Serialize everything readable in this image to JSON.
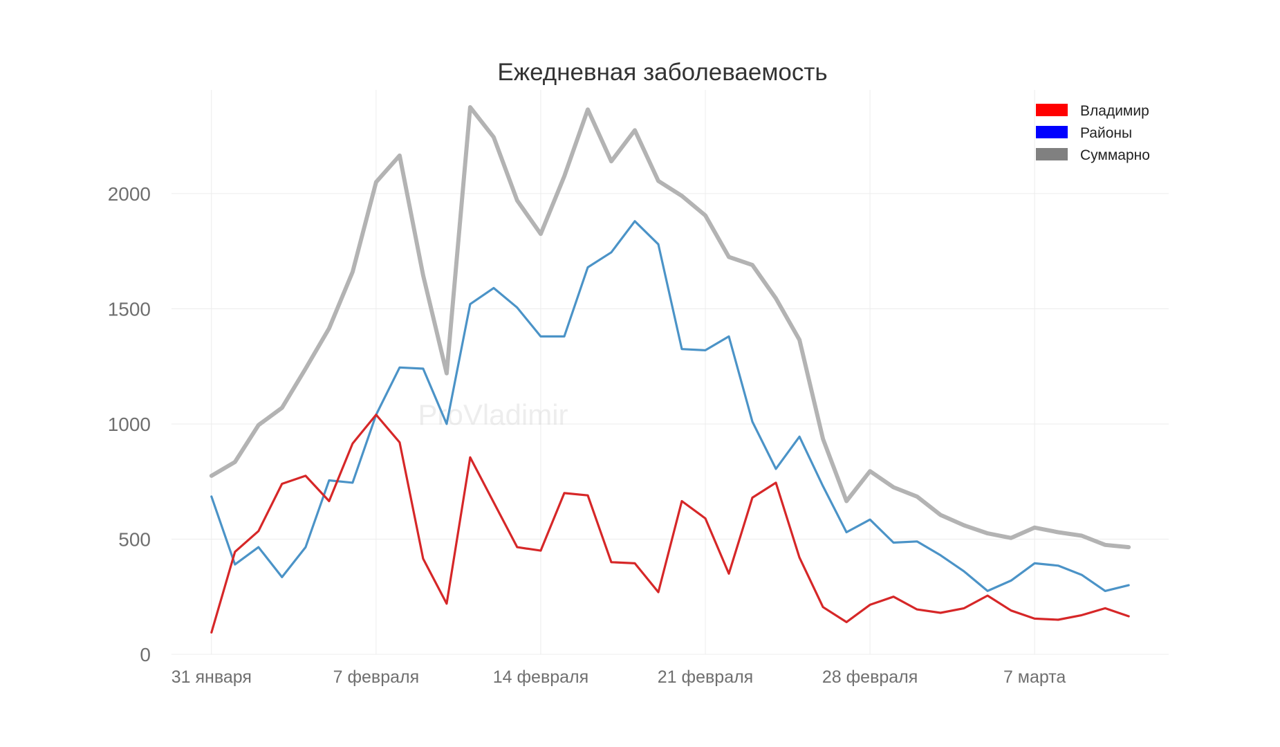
{
  "chart_data": {
    "type": "line",
    "title": "Ежедневная заболеваемость",
    "watermark": "ProVladimir",
    "xlabel": "",
    "ylabel": "",
    "x_start_day": 0,
    "x_count": 40,
    "x_range": [
      -1.7,
      40.7
    ],
    "ylim": [
      0,
      2450
    ],
    "y_ticks": [
      0,
      500,
      1000,
      1500,
      2000
    ],
    "x_ticks": [
      {
        "day": 0,
        "label": "31 января"
      },
      {
        "day": 7,
        "label": "7 февраля"
      },
      {
        "day": 14,
        "label": "14 февраля"
      },
      {
        "day": 21,
        "label": "21 февраля"
      },
      {
        "day": 28,
        "label": "28 февраля"
      },
      {
        "day": 35,
        "label": "7 марта"
      }
    ],
    "legend_position": "top-right",
    "series": [
      {
        "name": "Суммарно",
        "color": "#b3b3b3",
        "legend_color": "#808080",
        "values": [
          775,
          835,
          995,
          1070,
          1240,
          1415,
          1660,
          2050,
          2165,
          1645,
          1220,
          2375,
          2245,
          1970,
          1825,
          2075,
          2365,
          2140,
          2275,
          2055,
          1990,
          1905,
          1725,
          1690,
          1545,
          1365,
          935,
          665,
          795,
          725,
          685,
          605,
          560,
          525,
          505,
          550,
          530,
          515,
          475,
          465
        ]
      },
      {
        "name": "Районы",
        "color": "#4b93c7",
        "legend_color": "#0000ff",
        "values": [
          685,
          390,
          465,
          335,
          465,
          755,
          745,
          1040,
          1245,
          1240,
          1000,
          1520,
          1590,
          1505,
          1380,
          1380,
          1680,
          1745,
          1880,
          1780,
          1325,
          1320,
          1380,
          1010,
          805,
          945,
          730,
          530,
          585,
          485,
          490,
          430,
          360,
          275,
          320,
          395,
          385,
          345,
          275,
          300
        ]
      },
      {
        "name": "Владимир",
        "color": "#d62728",
        "legend_color": "#ff0000",
        "values": [
          95,
          445,
          535,
          740,
          775,
          665,
          915,
          1040,
          920,
          415,
          220,
          855,
          660,
          465,
          450,
          700,
          690,
          400,
          395,
          270,
          665,
          590,
          350,
          680,
          745,
          420,
          205,
          140,
          215,
          250,
          195,
          180,
          200,
          255,
          190,
          155,
          150,
          170,
          200,
          165
        ]
      }
    ]
  }
}
